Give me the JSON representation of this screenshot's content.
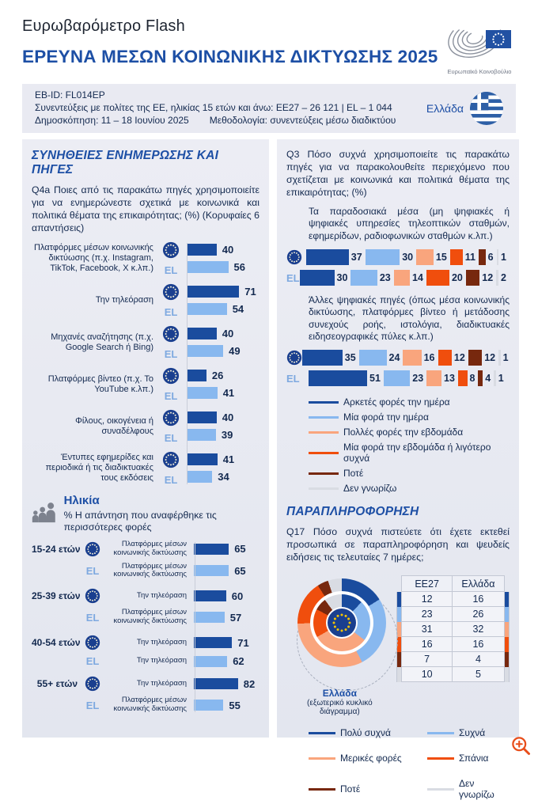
{
  "colors": {
    "very_often": "#1a4c9e",
    "often": "#88b8ef",
    "sometimes": "#f9a57d",
    "rarely": "#f04e0d",
    "never": "#77280e",
    "dont_know": "#d9dce3",
    "accent": "#1d4fa5",
    "navy": "#13294f",
    "el_light": "#7ea9e0"
  },
  "header": {
    "eyebrow": "Ευρωβαρόμετρο Flash",
    "title": "ΕΡΕΥΝΑ ΜΕΣΩΝ ΚΟΙΝΩΝΙΚΗΣ ΔΙΚΤΥΩΣΗΣ 2025",
    "logo_caption": "Ευρωπαϊκό Κοινοβούλιο"
  },
  "meta": {
    "eb_id": "EB-ID: FL014EP",
    "interviews": "Συνεντεύξεις με πολίτες της ΕΕ, ηλικίας 15 ετών και άνω: ΕΕ27 – 26 121 | EL – 1 044",
    "poll": "Δημοσκόπηση: 11 – 18 Ιουνίου 2025",
    "method": "Μεθοδολογία: συνεντεύξεις μέσω διαδικτύου",
    "country": "Ελλάδα"
  },
  "left_panel": {
    "section_title": "ΣΥΝΗΘΕΙΕΣ ΕΝΗΜΕΡΩΣΗΣ ΚΑΙ ΠΗΓΕΣ",
    "question": "Q4a Ποιες από τις παρακάτω πηγές χρησιμοποιείτε για να ενημερώνεστε σχετικά με κοινωνικά και πολιτικά θέματα της επικαιρότητας; (%) (Κορυφαίες 6 απαντήσεις)",
    "sources": [
      {
        "label": "Πλατφόρμες μέσων κοινωνικής δικτύωσης (π.χ. Instagram, TikTok, Facebook, X κ.λπ.)",
        "eu": 40,
        "el": 56
      },
      {
        "label": "Την τηλεόραση",
        "eu": 71,
        "el": 54
      },
      {
        "label": "Μηχανές αναζήτησης (π.χ. Google Search ή Bing)",
        "eu": 40,
        "el": 49
      },
      {
        "label": "Πλατφόρμες βίντεο (π.χ. Το YouTube κ.λπ.)",
        "eu": 26,
        "el": 41
      },
      {
        "label": "Φίλους, οικογένεια ή συναδέλφους",
        "eu": 40,
        "el": 39
      },
      {
        "label": "Έντυπες εφημερίδες και περιοδικά ή τις διαδικτυακές τους εκδόσεις",
        "eu": 41,
        "el": 34
      }
    ],
    "age": {
      "title": "Ηλικία",
      "subtitle": "% Η απάντηση που αναφέρθηκε τις περισσότερες φορές",
      "groups": [
        {
          "label": "15-24 ετών",
          "eu_answer": "Πλατφόρμες μέσων κοινωνικής δικτύωσης",
          "eu": 65,
          "el_answer": "Πλατφόρμες μέσων κοινωνικής δικτύωσης",
          "el": 65
        },
        {
          "label": "25-39 ετών",
          "eu_answer": "Την τηλεόραση",
          "eu": 60,
          "el_answer": "Πλατφόρμες μέσων κοινωνικής δικτύωσης",
          "el": 57
        },
        {
          "label": "40-54 ετών",
          "eu_answer": "Την τηλεόραση",
          "eu": 71,
          "el_answer": "Την τηλεόραση",
          "el": 62
        },
        {
          "label": "55+ ετών",
          "eu_answer": "Την τηλεόραση",
          "eu": 82,
          "el_answer": "Πλατφόρμες μέσων κοινωνικής δικτύωσης",
          "el": 55
        }
      ]
    }
  },
  "right_panel": {
    "q3": "Q3 Πόσο συχνά χρησιμοποιείτε τις παρακάτω πηγές για να παρακολουθείτε περιεχόμενο που σχετίζεται με κοινωνικά και πολιτικά θέματα της επικαιρότητας; (%)",
    "traditional": {
      "intro": "Τα παραδοσιακά μέσα (μη ψηφιακές ή ψηφιακές υπηρεσίες τηλεοπτικών σταθμών, εφημερίδων, ραδιοφωνικών σταθμών κ.λπ.)",
      "eu": [
        37,
        30,
        15,
        11,
        6,
        1
      ],
      "el": [
        30,
        23,
        14,
        20,
        12,
        2
      ]
    },
    "digital": {
      "intro": "Άλλες ψηφιακές πηγές (όπως μέσα κοινωνικής δικτύωσης, πλατφόρμες βίντεο ή μετάδοσης συνεχούς ροής, ιστολόγια, διαδικτυακές ειδησεογραφικές πύλες κ.λπ.)",
      "eu": [
        35,
        24,
        16,
        12,
        12,
        1
      ],
      "el": [
        51,
        23,
        13,
        8,
        4,
        1
      ]
    },
    "freq_legend": [
      "Αρκετές φορές την ημέρα",
      "Μία φορά την ημέρα",
      "Πολλές φορές την εβδομάδα",
      "Μία φορά την εβδομάδα ή λιγότερο συχνά",
      "Ποτέ",
      "Δεν γνωρίζω"
    ],
    "disinfo": {
      "section_title": "ΠΑΡΑΠΛΗΡΟΦΟΡΗΣΗ",
      "q17": "Q17 Πόσο συχνά πιστεύετε ότι έχετε εκτεθεί προσωπικά σε παραπληροφόρηση και ψευδείς ειδήσεις τις τελευταίες 7 ημέρες;",
      "donut_caption_country": "Ελλάδα",
      "donut_caption_note": "(εξωτερικό κυκλικό διάγραμμα)",
      "table_headers": [
        "ΕΕ27",
        "Ελλάδα"
      ],
      "table_rows": [
        [
          12,
          16
        ],
        [
          23,
          26
        ],
        [
          31,
          32
        ],
        [
          16,
          16
        ],
        [
          7,
          4
        ],
        [
          10,
          5
        ]
      ],
      "legend": [
        "Πολύ συχνά",
        "Συχνά",
        "Μερικές φορές",
        "Σπάνια",
        "Ποτέ",
        "Δεν γνωρίζω"
      ]
    }
  },
  "chart_data": [
    {
      "type": "bar",
      "orientation": "horizontal",
      "title": "Q4a Πηγές ενημέρωσης για κοινωνικά και πολιτικά θέματα (%) — Κορυφαίες 6 απαντήσεις",
      "categories": [
        "Πλατφόρμες μέσων κοινωνικής δικτύωσης (π.χ. Instagram, TikTok, Facebook, X κ.λπ.)",
        "Την τηλεόραση",
        "Μηχανές αναζήτησης (π.χ. Google Search ή Bing)",
        "Πλατφόρμες βίντεο (π.χ. Το YouTube κ.λπ.)",
        "Φίλους, οικογένεια ή συναδέλφους",
        "Έντυπες εφημερίδες και περιοδικά ή τις διαδικτυακές τους εκδόσεις"
      ],
      "series": [
        {
          "name": "ΕΕ27",
          "values": [
            40,
            71,
            40,
            26,
            40,
            41
          ]
        },
        {
          "name": "EL",
          "values": [
            56,
            54,
            49,
            41,
            39,
            34
          ]
        }
      ],
      "xlim": [
        0,
        100
      ]
    },
    {
      "type": "bar",
      "subtype": "stacked",
      "orientation": "horizontal",
      "title": "Q3 Συχνότητα χρήσης — Τα παραδοσιακά μέσα (%)",
      "categories": [
        "ΕΕ27",
        "EL"
      ],
      "series": [
        {
          "name": "Αρκετές φορές την ημέρα",
          "values": [
            37,
            30
          ]
        },
        {
          "name": "Μία φορά την ημέρα",
          "values": [
            30,
            23
          ]
        },
        {
          "name": "Πολλές φορές την εβδομάδα",
          "values": [
            15,
            14
          ]
        },
        {
          "name": "Μία φορά την εβδομάδα ή λιγότερο συχνά",
          "values": [
            11,
            20
          ]
        },
        {
          "name": "Ποτέ",
          "values": [
            6,
            12
          ]
        },
        {
          "name": "Δεν γνωρίζω",
          "values": [
            1,
            2
          ]
        }
      ]
    },
    {
      "type": "bar",
      "subtype": "stacked",
      "orientation": "horizontal",
      "title": "Q3 Συχνότητα χρήσης — Άλλες ψηφιακές πηγές (%)",
      "categories": [
        "ΕΕ27",
        "EL"
      ],
      "series": [
        {
          "name": "Αρκετές φορές την ημέρα",
          "values": [
            35,
            51
          ]
        },
        {
          "name": "Μία φορά την ημέρα",
          "values": [
            24,
            23
          ]
        },
        {
          "name": "Πολλές φορές την εβδομάδα",
          "values": [
            16,
            13
          ]
        },
        {
          "name": "Μία φορά την εβδομάδα ή λιγότερο συχνά",
          "values": [
            12,
            8
          ]
        },
        {
          "name": "Ποτέ",
          "values": [
            12,
            4
          ]
        },
        {
          "name": "Δεν γνωρίζω",
          "values": [
            1,
            1
          ]
        }
      ]
    },
    {
      "type": "table",
      "title": "Ηλικία — % Η απάντηση που αναφέρθηκε τις περισσότερες φορές",
      "rows": [
        {
          "group": "15-24 ετών",
          "eu_answer": "Πλατφόρμες μέσων κοινωνικής δικτύωσης",
          "eu": 65,
          "el_answer": "Πλατφόρμες μέσων κοινωνικής δικτύωσης",
          "el": 65
        },
        {
          "group": "25-39 ετών",
          "eu_answer": "Την τηλεόραση",
          "eu": 60,
          "el_answer": "Πλατφόρμες μέσων κοινωνικής δικτύωσης",
          "el": 57
        },
        {
          "group": "40-54 ετών",
          "eu_answer": "Την τηλεόραση",
          "eu": 71,
          "el_answer": "Την τηλεόραση",
          "el": 62
        },
        {
          "group": "55+ ετών",
          "eu_answer": "Την τηλεόραση",
          "eu": 82,
          "el_answer": "Πλατφόρμες μέσων κοινωνικής δικτύωσης",
          "el": 55
        }
      ]
    },
    {
      "type": "pie",
      "subtype": "double-donut",
      "title": "Q17 Έκθεση σε παραπληροφόρηση τις τελευταίες 7 ημέρες (%)",
      "labels": [
        "Πολύ συχνά",
        "Συχνά",
        "Μερικές φορές",
        "Σπάνια",
        "Ποτέ",
        "Δεν γνωρίζω"
      ],
      "series": [
        {
          "name": "ΕΕ27 (εσωτερικός δακτύλιος)",
          "values": [
            12,
            23,
            31,
            16,
            7,
            10
          ]
        },
        {
          "name": "Ελλάδα (εξωτερικό κυκλικό διάγραμμα)",
          "values": [
            16,
            26,
            32,
            16,
            4,
            5
          ]
        }
      ]
    }
  ]
}
